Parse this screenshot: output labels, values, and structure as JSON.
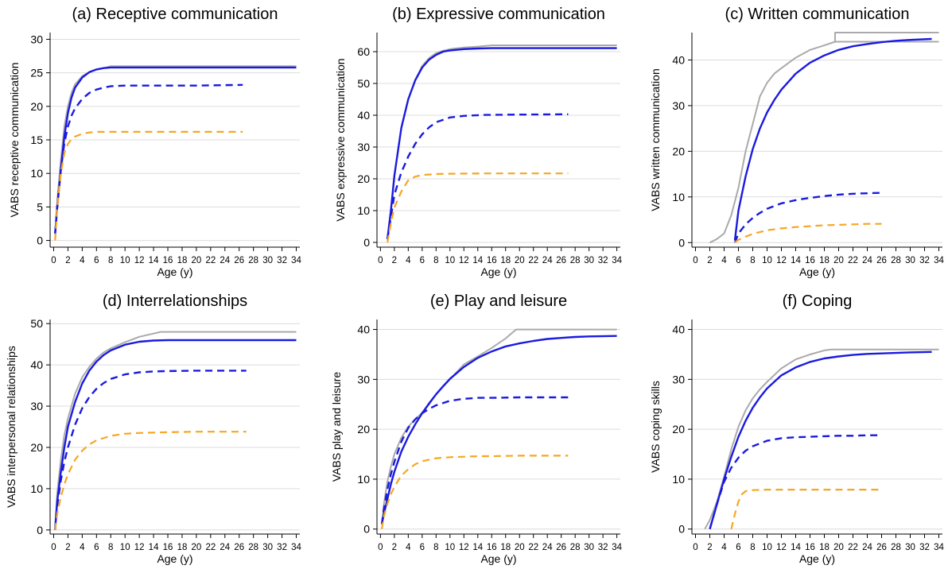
{
  "colors": {
    "gray": "#aaaaaa",
    "blue": "#1a1adf",
    "orange": "#f5a623",
    "grid": "#dcdcdc",
    "axis": "#000000"
  },
  "chart_data": [
    {
      "type": "line",
      "title": "(a) Receptive communication",
      "xlabel": "Age (y)",
      "ylabel": "VABS receptive communication",
      "xlim": [
        -0.5,
        34.5
      ],
      "ylim": [
        -1,
        31
      ],
      "xticks": [
        "0",
        "2",
        "4",
        "6",
        "8",
        "10",
        "12",
        "14",
        "16",
        "18",
        "20",
        "22",
        "24",
        "26",
        "28",
        "30",
        "32",
        "34"
      ],
      "yticks": [
        "0",
        "5",
        "10",
        "15",
        "20",
        "25",
        "30"
      ],
      "grid": true,
      "series": [
        {
          "style": "gray-solid",
          "x": [
            0.2,
            0.5,
            1,
            1.5,
            2,
            2.5,
            3,
            4,
            5,
            6,
            7,
            8,
            10,
            15,
            34
          ],
          "y": [
            1,
            6,
            12,
            17,
            20,
            22,
            23.3,
            24.5,
            25.1,
            25.5,
            25.7,
            26,
            26,
            26,
            26
          ]
        },
        {
          "style": "blue-solid",
          "x": [
            0.2,
            0.5,
            1,
            1.5,
            2,
            2.5,
            3,
            4,
            5,
            6,
            7,
            8,
            10,
            15,
            20,
            25,
            34
          ],
          "y": [
            1,
            5,
            10.5,
            15.5,
            19,
            21.3,
            22.8,
            24.3,
            25.1,
            25.5,
            25.7,
            25.8,
            25.8,
            25.8,
            25.8,
            25.8,
            25.8
          ]
        },
        {
          "style": "blue-dash",
          "x": [
            0.2,
            0.5,
            1,
            1.5,
            2,
            2.5,
            3,
            4,
            5,
            6,
            7,
            8,
            10,
            12,
            15,
            20,
            26.5
          ],
          "y": [
            1,
            5,
            10.5,
            14.5,
            17,
            18.6,
            19.7,
            21.1,
            22,
            22.5,
            22.8,
            23,
            23.1,
            23.1,
            23.1,
            23.1,
            23.2
          ]
        },
        {
          "style": "orange-dash",
          "x": [
            0.2,
            0.5,
            1,
            1.5,
            2,
            2.5,
            3,
            4,
            5,
            6,
            8,
            10,
            15,
            20,
            26.5
          ],
          "y": [
            0,
            5,
            10,
            13,
            14.4,
            15.1,
            15.5,
            15.9,
            16.1,
            16.2,
            16.2,
            16.2,
            16.2,
            16.2,
            16.2
          ]
        }
      ]
    },
    {
      "type": "line",
      "title": "(b) Expressive communication",
      "xlabel": "Age (y)",
      "ylabel": "VABS expressive communication",
      "xlim": [
        -0.5,
        34.5
      ],
      "ylim": [
        -1.5,
        66
      ],
      "xticks": [
        "0",
        "2",
        "4",
        "6",
        "8",
        "10",
        "12",
        "14",
        "16",
        "18",
        "20",
        "22",
        "24",
        "26",
        "28",
        "30",
        "32",
        "34"
      ],
      "yticks": [
        "0",
        "10",
        "20",
        "30",
        "40",
        "50",
        "60"
      ],
      "grid": true,
      "series": [
        {
          "style": "gray-solid",
          "x": [
            1,
            1.5,
            2,
            3,
            4,
            5,
            6,
            7,
            8,
            9,
            10,
            12,
            14,
            16,
            20,
            34
          ],
          "y": [
            1,
            10,
            21,
            36,
            45,
            51,
            55.5,
            58,
            59.5,
            60.3,
            60.8,
            61.3,
            61.6,
            62,
            62,
            62
          ]
        },
        {
          "style": "blue-solid",
          "x": [
            1,
            1.5,
            2,
            3,
            4,
            5,
            6,
            7,
            8,
            9,
            10,
            12,
            14,
            16,
            20,
            34
          ],
          "y": [
            1,
            10,
            21,
            36,
            45,
            51,
            55,
            57.5,
            59,
            60,
            60.4,
            60.8,
            61,
            61.1,
            61.1,
            61.1
          ]
        },
        {
          "style": "blue-dash",
          "x": [
            1,
            1.5,
            2,
            3,
            4,
            5,
            6,
            7,
            8,
            10,
            12,
            15,
            20,
            27
          ],
          "y": [
            1,
            8,
            15,
            22,
            27,
            31,
            34,
            36.2,
            37.8,
            39.3,
            39.8,
            40.1,
            40.2,
            40.3
          ]
        },
        {
          "style": "orange-dash",
          "x": [
            1,
            1.5,
            2,
            3,
            4,
            5,
            6,
            8,
            10,
            15,
            20,
            27
          ],
          "y": [
            0,
            6,
            11,
            16,
            19.5,
            20.7,
            21.2,
            21.5,
            21.6,
            21.7,
            21.7,
            21.7
          ]
        }
      ]
    },
    {
      "type": "line",
      "title": "(c) Written communication",
      "xlabel": "Age (y)",
      "ylabel": "VABS written communication",
      "xlim": [
        -0.5,
        34.5
      ],
      "ylim": [
        -1,
        46
      ],
      "xticks": [
        "0",
        "2",
        "4",
        "6",
        "8",
        "10",
        "12",
        "14",
        "16",
        "18",
        "20",
        "22",
        "24",
        "26",
        "28",
        "30",
        "32",
        "34"
      ],
      "yticks": [
        "0",
        "10",
        "20",
        "30",
        "40"
      ],
      "grid": true,
      "series": [
        {
          "style": "gray-solid",
          "x": [
            2,
            3,
            4,
            5,
            6,
            7,
            8,
            9,
            10,
            11,
            12,
            14,
            16,
            18,
            19.5,
            19.5,
            34
          ],
          "y": [
            0,
            0.8,
            2,
            6,
            12,
            20,
            26,
            32,
            35,
            37,
            38.2,
            40.5,
            42.2,
            43.2,
            44,
            46,
            46
          ]
        },
        {
          "style": "gray-solid",
          "x": [
            19.5,
            34
          ],
          "y": [
            44,
            44
          ]
        },
        {
          "style": "blue-solid",
          "x": [
            5.5,
            6,
            7,
            8,
            9,
            10,
            11,
            12,
            14,
            16,
            18,
            20,
            22,
            24,
            26,
            28,
            30,
            33
          ],
          "y": [
            0.5,
            7,
            14.5,
            20.5,
            25,
            28.5,
            31.2,
            33.5,
            37,
            39.4,
            41,
            42.2,
            43,
            43.5,
            43.9,
            44.2,
            44.4,
            44.6
          ]
        },
        {
          "style": "blue-dash",
          "x": [
            5.5,
            6,
            7,
            8,
            9,
            10,
            12,
            14,
            16,
            18,
            20,
            22,
            24,
            26
          ],
          "y": [
            0,
            2,
            4,
            5.4,
            6.5,
            7.4,
            8.6,
            9.3,
            9.8,
            10.2,
            10.5,
            10.7,
            10.8,
            10.9
          ]
        },
        {
          "style": "orange-dash",
          "x": [
            5.5,
            6,
            7,
            8,
            10,
            12,
            14,
            16,
            18,
            20,
            22,
            24,
            26
          ],
          "y": [
            0,
            0.6,
            1.3,
            1.9,
            2.7,
            3.1,
            3.4,
            3.6,
            3.8,
            3.9,
            4,
            4.1,
            4.1
          ]
        }
      ]
    },
    {
      "type": "line",
      "title": "(d) Interrelationships",
      "xlabel": "Age (y)",
      "ylabel": "VABS interpersonal relationships",
      "xlim": [
        -0.5,
        34.5
      ],
      "ylim": [
        -1,
        51
      ],
      "xticks": [
        "0",
        "2",
        "4",
        "6",
        "8",
        "10",
        "12",
        "14",
        "16",
        "18",
        "20",
        "22",
        "24",
        "26",
        "28",
        "30",
        "32",
        "34"
      ],
      "yticks": [
        "0",
        "10",
        "20",
        "30",
        "40",
        "50"
      ],
      "grid": true,
      "series": [
        {
          "style": "gray-solid",
          "x": [
            0.2,
            0.5,
            1,
            1.5,
            2,
            3,
            4,
            5,
            6,
            7,
            8,
            10,
            12,
            14,
            15,
            34
          ],
          "y": [
            1,
            9,
            17,
            23,
            27,
            33,
            37,
            39.5,
            41.5,
            43,
            44,
            45.5,
            46.8,
            47.6,
            48,
            48
          ]
        },
        {
          "style": "blue-solid",
          "x": [
            0.2,
            0.5,
            1,
            1.5,
            2,
            3,
            4,
            5,
            6,
            7,
            8,
            10,
            12,
            14,
            16,
            20,
            34
          ],
          "y": [
            0,
            7,
            14,
            20,
            25,
            31,
            35.5,
            38.6,
            40.8,
            42.4,
            43.5,
            44.9,
            45.6,
            45.9,
            46,
            46,
            46
          ]
        },
        {
          "style": "blue-dash",
          "x": [
            0.2,
            0.5,
            1,
            1.5,
            2,
            3,
            4,
            5,
            6,
            7,
            8,
            10,
            12,
            14,
            16,
            20,
            27
          ],
          "y": [
            0,
            6,
            12,
            16.5,
            20,
            25.5,
            29.5,
            32.2,
            34.2,
            35.6,
            36.6,
            37.7,
            38.2,
            38.4,
            38.5,
            38.6,
            38.6
          ]
        },
        {
          "style": "orange-dash",
          "x": [
            0.2,
            0.5,
            1,
            1.5,
            2,
            3,
            4,
            5,
            6,
            8,
            10,
            12,
            14,
            16,
            20,
            27
          ],
          "y": [
            0,
            4,
            8,
            11,
            13.5,
            17,
            19.2,
            20.7,
            21.7,
            22.8,
            23.3,
            23.5,
            23.6,
            23.7,
            23.8,
            23.8
          ]
        }
      ]
    },
    {
      "type": "line",
      "title": "(e) Play and leisure",
      "xlabel": "Age (y)",
      "ylabel": "VABS play and leisure",
      "xlim": [
        -0.5,
        34.5
      ],
      "ylim": [
        -1,
        42
      ],
      "xticks": [
        "0",
        "2",
        "4",
        "6",
        "8",
        "10",
        "12",
        "14",
        "16",
        "18",
        "20",
        "22",
        "24",
        "26",
        "28",
        "30",
        "32",
        "34"
      ],
      "yticks": [
        "0",
        "10",
        "20",
        "30",
        "40"
      ],
      "grid": true,
      "series": [
        {
          "style": "gray-solid",
          "x": [
            0.2,
            0.5,
            1,
            1.5,
            2,
            3,
            4,
            5,
            6,
            7,
            8,
            10,
            12,
            14,
            16,
            18,
            19.5,
            34
          ],
          "y": [
            1,
            5,
            9.5,
            12.5,
            15,
            18.3,
            20.5,
            22,
            23.3,
            25,
            27,
            30,
            33,
            34.6,
            36.3,
            38.2,
            40,
            40
          ]
        },
        {
          "style": "blue-solid",
          "x": [
            0.2,
            0.5,
            1,
            1.5,
            2,
            3,
            4,
            5,
            6,
            7,
            8,
            9,
            10,
            12,
            14,
            16,
            18,
            20,
            22,
            24,
            26,
            28,
            30,
            34
          ],
          "y": [
            1,
            3,
            6,
            9,
            11.5,
            15.5,
            18.5,
            21,
            23.2,
            25.2,
            27,
            28.6,
            30.1,
            32.5,
            34.3,
            35.6,
            36.6,
            37.2,
            37.7,
            38.1,
            38.3,
            38.5,
            38.6,
            38.7
          ]
        },
        {
          "style": "blue-dash",
          "x": [
            0.2,
            0.5,
            1,
            1.5,
            2,
            3,
            4,
            5,
            6,
            7,
            8,
            10,
            12,
            14,
            16,
            20,
            27
          ],
          "y": [
            1,
            4,
            8,
            11,
            13.5,
            17.5,
            20.3,
            22,
            23.2,
            24.1,
            24.8,
            25.7,
            26.1,
            26.3,
            26.3,
            26.4,
            26.4
          ]
        },
        {
          "style": "orange-dash",
          "x": [
            0.2,
            0.5,
            1,
            1.5,
            2,
            3,
            4,
            5,
            6,
            8,
            10,
            12,
            14,
            16,
            20,
            27
          ],
          "y": [
            0,
            2.5,
            5,
            7,
            8.5,
            10.7,
            12,
            13,
            13.6,
            14.2,
            14.4,
            14.5,
            14.6,
            14.6,
            14.7,
            14.7
          ]
        }
      ]
    },
    {
      "type": "line",
      "title": "(f) Coping",
      "xlabel": "Age (y)",
      "ylabel": "VABS coping skills",
      "xlim": [
        -0.5,
        34.5
      ],
      "ylim": [
        -1,
        42
      ],
      "xticks": [
        "0",
        "2",
        "4",
        "6",
        "8",
        "10",
        "12",
        "14",
        "16",
        "18",
        "20",
        "22",
        "24",
        "26",
        "28",
        "30",
        "32",
        "34"
      ],
      "yticks": [
        "0",
        "10",
        "20",
        "30",
        "40"
      ],
      "grid": true,
      "series": [
        {
          "style": "gray-solid",
          "x": [
            1.3,
            2,
            3,
            4,
            5,
            6,
            7,
            8,
            9,
            10,
            12,
            14,
            16,
            18,
            19,
            34
          ],
          "y": [
            0,
            1.8,
            5.5,
            10.5,
            16,
            20.5,
            23.8,
            26.2,
            28,
            29.5,
            32.2,
            34,
            35,
            35.8,
            36,
            36
          ]
        },
        {
          "style": "blue-solid",
          "x": [
            2,
            3,
            4,
            5,
            6,
            7,
            8,
            9,
            10,
            12,
            14,
            16,
            18,
            20,
            22,
            24,
            26,
            28,
            30,
            33
          ],
          "y": [
            0,
            5,
            10,
            14.5,
            18.5,
            21.7,
            24.3,
            26.4,
            28.2,
            30.8,
            32.4,
            33.5,
            34.2,
            34.6,
            34.9,
            35.1,
            35.2,
            35.3,
            35.4,
            35.5
          ]
        },
        {
          "style": "blue-dash",
          "x": [
            2,
            3,
            4,
            5,
            6,
            7,
            8,
            10,
            12,
            14,
            16,
            18,
            20,
            22,
            24,
            26
          ],
          "y": [
            0,
            5,
            9.5,
            12.3,
            14.3,
            15.7,
            16.6,
            17.7,
            18.2,
            18.4,
            18.5,
            18.6,
            18.7,
            18.7,
            18.8,
            18.8
          ]
        },
        {
          "style": "orange-dash",
          "x": [
            5,
            5.5,
            6,
            6.5,
            7,
            8,
            10,
            12,
            15,
            20,
            26
          ],
          "y": [
            0,
            3,
            5.5,
            7,
            7.6,
            7.8,
            7.9,
            7.9,
            7.9,
            7.9,
            7.9
          ]
        }
      ]
    }
  ]
}
